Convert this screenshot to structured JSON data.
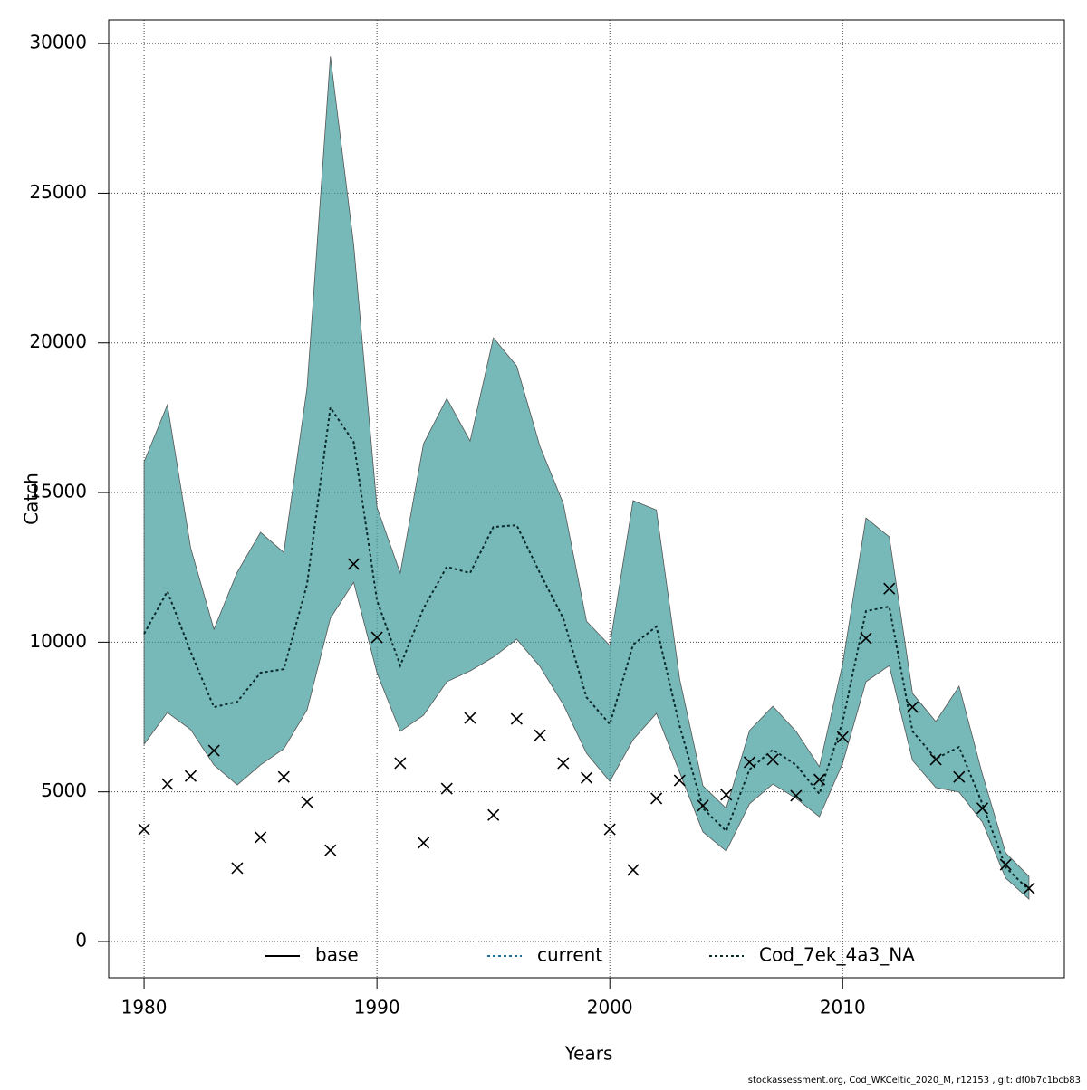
{
  "chart_data": {
    "type": "band_line",
    "x_label": "Years",
    "y_label": "Catch",
    "footer": "stockassessment.org, Cod_WKCeltic_2020_M, r12153 , git: df0b7c1bcb83",
    "xlim": [
      1978.48,
      2019.52
    ],
    "ylim": [
      -1210,
      30790
    ],
    "xticks": [
      1980,
      1990,
      2000,
      2010
    ],
    "yticks": [
      0,
      5000,
      10000,
      15000,
      20000,
      25000,
      30000
    ],
    "grid": true,
    "legend_position": "bottom",
    "x": [
      1980,
      1981,
      1982,
      1983,
      1984,
      1985,
      1986,
      1987,
      1988,
      1989,
      1990,
      1991,
      1992,
      1993,
      1994,
      1995,
      1996,
      1997,
      1998,
      1999,
      2000,
      2001,
      2002,
      2003,
      2004,
      2005,
      2006,
      2007,
      2008,
      2009,
      2010,
      2011,
      2012,
      2013,
      2014,
      2015,
      2016,
      2017,
      2018
    ],
    "series": [
      {
        "name": "base",
        "color": "#000000",
        "dash": "solid"
      },
      {
        "name": "current",
        "color": "#1f6f9f",
        "dash": "dotted"
      },
      {
        "name": "Cod_7ek_4a3_NA",
        "color": "#0a2a2a",
        "dash": "dotted",
        "band_color": "#3d9b9b",
        "values": [
          10280,
          11700,
          9680,
          7830,
          8010,
          8980,
          9100,
          11940,
          17840,
          16690,
          11400,
          9220,
          11130,
          12520,
          12310,
          13850,
          13910,
          12310,
          10800,
          8160,
          7260,
          9920,
          10520,
          7200,
          4450,
          3690,
          5750,
          6410,
          5900,
          4930,
          7350,
          11040,
          11190,
          7020,
          6110,
          6500,
          4600,
          2480,
          1720
        ],
        "lower": [
          6590,
          7650,
          7080,
          5900,
          5230,
          5900,
          6440,
          7740,
          10800,
          12000,
          8980,
          7020,
          7560,
          8680,
          9040,
          9500,
          10100,
          9190,
          7920,
          6290,
          5350,
          6740,
          7620,
          5650,
          3660,
          3020,
          4600,
          5260,
          4780,
          4170,
          5960,
          8680,
          9220,
          6050,
          5140,
          4990,
          3990,
          2120,
          1420
        ],
        "upper": [
          16030,
          17930,
          13150,
          10430,
          12340,
          13670,
          13000,
          18510,
          29570,
          23280,
          14510,
          12310,
          16630,
          18140,
          16720,
          20170,
          19230,
          16540,
          14640,
          10700,
          9890,
          14730,
          14420,
          8770,
          5200,
          4450,
          7050,
          7860,
          7020,
          5840,
          9280,
          14150,
          13520,
          8290,
          7350,
          8530,
          5590,
          2960,
          2180
        ]
      }
    ],
    "observed": {
      "color": "#000000",
      "values": [
        3750,
        5260,
        5530,
        6380,
        2450,
        3480,
        5500,
        4660,
        3050,
        12610,
        10160,
        5960,
        3300,
        5110,
        7470,
        4230,
        7440,
        6890,
        5960,
        5470,
        3750,
        2390,
        4780,
        5380,
        4540,
        4900,
        5990,
        6080,
        4870,
        5410,
        6830,
        10130,
        11790,
        7830,
        6080,
        5500,
        4450,
        2570,
        1780
      ]
    }
  }
}
